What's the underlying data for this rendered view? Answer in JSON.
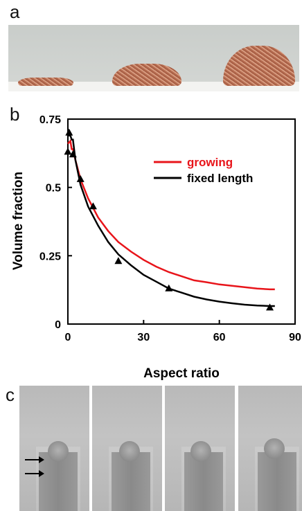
{
  "panels": {
    "a": {
      "letter": "a"
    },
    "b": {
      "letter": "b"
    },
    "c": {
      "letter": "c"
    }
  },
  "chart_data": {
    "type": "line",
    "xlabel": "Aspect ratio",
    "ylabel": "Volume fraction",
    "xlim": [
      0,
      90
    ],
    "ylim": [
      0,
      0.75
    ],
    "xticks": [
      "0",
      "30",
      "60",
      "90"
    ],
    "yticks": [
      "0",
      "0.25",
      "0.5",
      "0.75"
    ],
    "legend_position": "upper-right",
    "grid": false,
    "series": [
      {
        "name": "growing",
        "color": "#e8141a",
        "x": [
          0,
          1,
          1.5,
          2,
          3,
          5,
          8,
          12,
          16,
          20,
          25,
          30,
          35,
          40,
          45,
          50,
          55,
          60,
          65,
          70,
          75,
          80,
          82
        ],
        "y": [
          0.66,
          0.67,
          0.64,
          0.64,
          0.6,
          0.53,
          0.46,
          0.39,
          0.34,
          0.3,
          0.265,
          0.235,
          0.21,
          0.19,
          0.175,
          0.16,
          0.153,
          0.145,
          0.14,
          0.135,
          0.13,
          0.127,
          0.127
        ]
      },
      {
        "name": "fixed length",
        "color": "#000000",
        "x": [
          0,
          1,
          1.5,
          2,
          3,
          5,
          8,
          12,
          16,
          20,
          25,
          30,
          35,
          40,
          45,
          50,
          55,
          60,
          65,
          70,
          75,
          80,
          82
        ],
        "y": [
          0.69,
          0.69,
          0.675,
          0.675,
          0.6,
          0.51,
          0.43,
          0.36,
          0.3,
          0.255,
          0.215,
          0.18,
          0.155,
          0.13,
          0.115,
          0.1,
          0.09,
          0.082,
          0.076,
          0.071,
          0.068,
          0.066,
          0.066
        ]
      },
      {
        "name": "",
        "marker": "triangle",
        "color": "#000000",
        "x": [
          0,
          0.5,
          2,
          5,
          10,
          20,
          40,
          80
        ],
        "y": [
          0.63,
          0.7,
          0.62,
          0.53,
          0.43,
          0.23,
          0.13,
          0.06
        ]
      }
    ]
  }
}
